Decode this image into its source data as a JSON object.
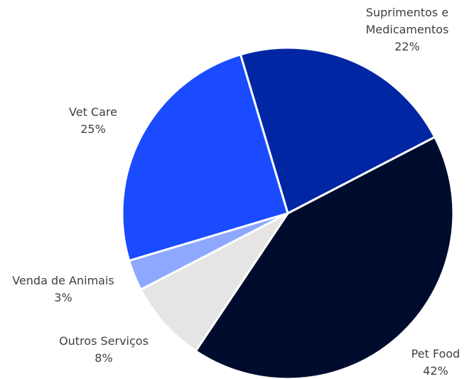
{
  "chart_data": {
    "type": "pie",
    "categories": [
      "Suprimentos e Medicamentos",
      "Pet Food",
      "Outros Serviços",
      "Venda de Animais",
      "Vet Care"
    ],
    "values": [
      22,
      42,
      8,
      3,
      25
    ],
    "value_labels": [
      "22%",
      "42%",
      "8%",
      "3%",
      "25%"
    ],
    "colors": [
      "#0026a3",
      "#000c2e",
      "#e6e5e3",
      "#8ea8ff",
      "#1a4bff"
    ]
  }
}
